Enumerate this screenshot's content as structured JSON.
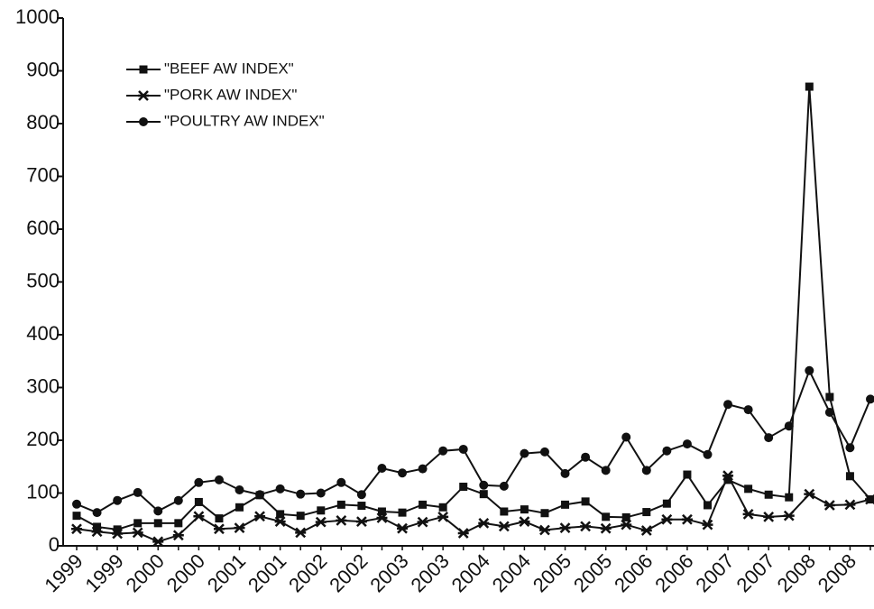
{
  "chart_data": {
    "type": "line",
    "categories": [
      "1999",
      null,
      "1999",
      null,
      "2000",
      null,
      "2000",
      null,
      "2001",
      null,
      "2001",
      null,
      "2002",
      null,
      "2002",
      null,
      "2003",
      null,
      "2003",
      null,
      "2004",
      null,
      "2004",
      null,
      "2005",
      null,
      "2005",
      null,
      "2006",
      null,
      "2006",
      null,
      "2007",
      null,
      "2007",
      null,
      "2008",
      null,
      "2008",
      null
    ],
    "series": [
      {
        "name": "\"BEEF AW INDEX\"",
        "color": "#111111",
        "marker": "square",
        "values": [
          57,
          36,
          31,
          43,
          43,
          43,
          83,
          52,
          73,
          96,
          60,
          57,
          67,
          78,
          76,
          65,
          63,
          78,
          73,
          112,
          98,
          65,
          69,
          62,
          78,
          84,
          55,
          54,
          64,
          80,
          135,
          77,
          125,
          108,
          97,
          92,
          870,
          282,
          132,
          88
        ]
      },
      {
        "name": "\"PORK AW INDEX\"",
        "color": "#111111",
        "marker": "star",
        "values": [
          32,
          27,
          23,
          25,
          8,
          20,
          56,
          32,
          34,
          56,
          46,
          25,
          45,
          48,
          46,
          53,
          33,
          45,
          55,
          24,
          43,
          37,
          46,
          30,
          34,
          37,
          33,
          40,
          29,
          50,
          50,
          40,
          133,
          60,
          55,
          57,
          98,
          77,
          78,
          88
        ]
      },
      {
        "name": "\"POULTRY AW INDEX\"",
        "color": "#111111",
        "marker": "circle",
        "values": [
          79,
          63,
          86,
          101,
          66,
          86,
          120,
          125,
          106,
          97,
          108,
          98,
          100,
          120,
          97,
          147,
          138,
          146,
          180,
          183,
          115,
          113,
          175,
          178,
          137,
          168,
          143,
          206,
          143,
          180,
          193,
          173,
          268,
          258,
          205,
          227,
          332,
          253,
          186,
          278
        ]
      }
    ],
    "ylim": [
      0,
      1000
    ],
    "yticks": [
      0,
      100,
      200,
      300,
      400,
      500,
      600,
      700,
      800,
      900,
      1000
    ],
    "grid": false
  }
}
